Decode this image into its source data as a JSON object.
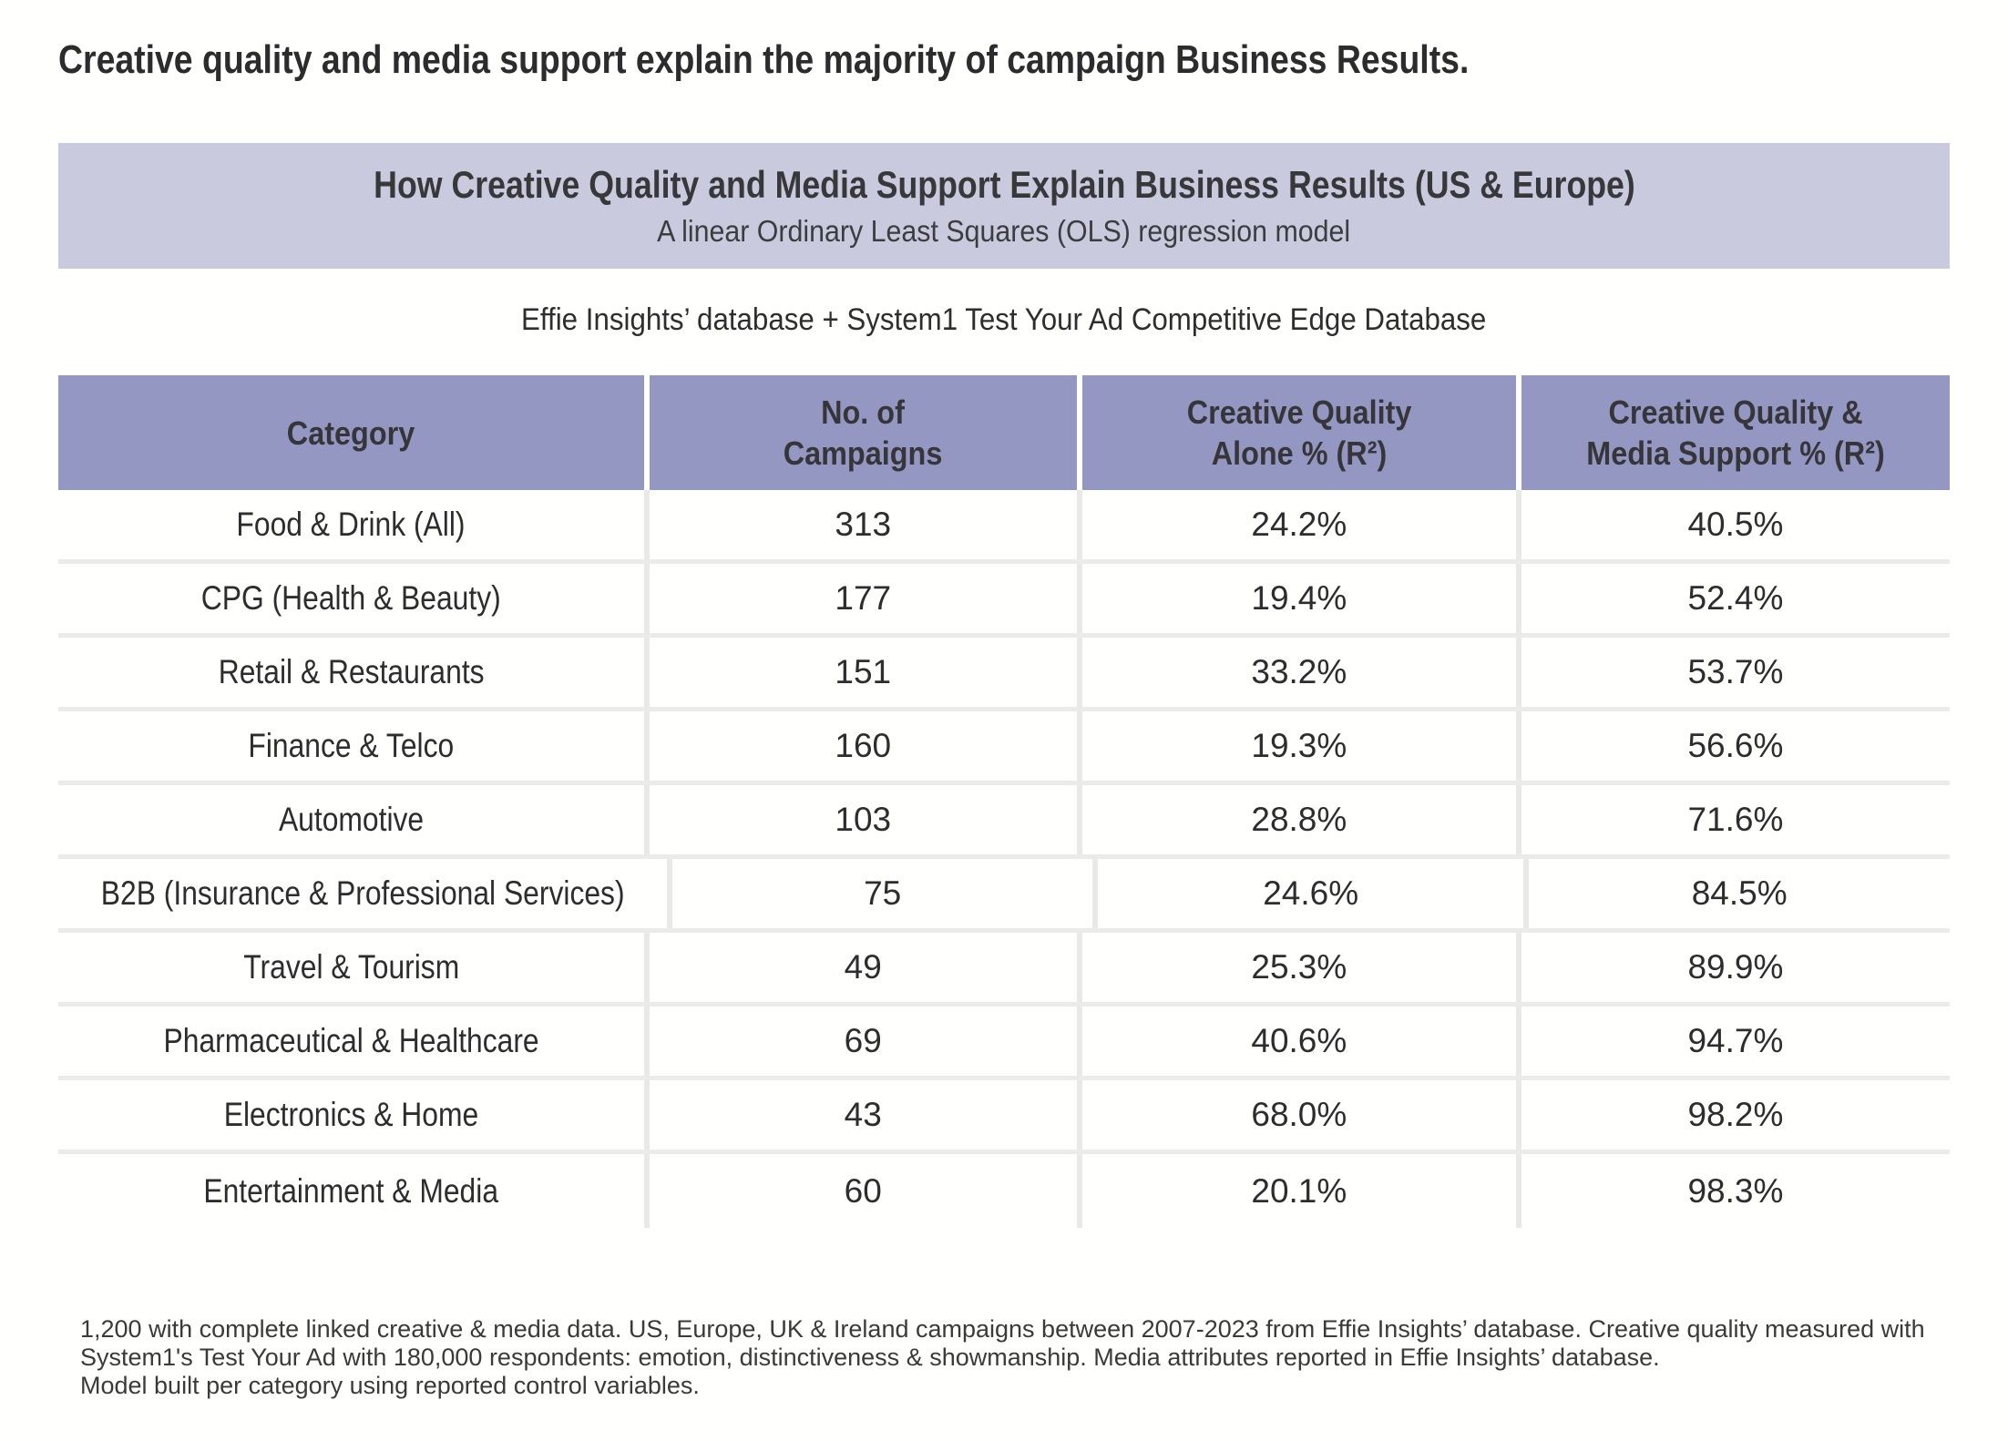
{
  "headline": "Creative quality and media support explain the majority of campaign Business Results.",
  "banner": {
    "title": "How Creative Quality and Media Support Explain Business Results (US & Europe)",
    "subtitle": "A linear Ordinary Least Squares (OLS) regression model"
  },
  "source_line": "Effie Insights’ database + System1 Test Your Ad Competitive Edge Database",
  "table": {
    "columns": [
      {
        "line1": "Category",
        "line2": ""
      },
      {
        "line1": "No. of",
        "line2": "Campaigns"
      },
      {
        "line1": "Creative Quality",
        "line2": "Alone % (R²)"
      },
      {
        "line1": "Creative Quality &",
        "line2": "Media Support % (R²)"
      }
    ],
    "rows": [
      {
        "category": "Food & Drink (All)",
        "campaigns": "313",
        "cq_alone": "24.2%",
        "cq_media": "40.5%"
      },
      {
        "category": "CPG (Health & Beauty)",
        "campaigns": "177",
        "cq_alone": "19.4%",
        "cq_media": "52.4%"
      },
      {
        "category": "Retail & Restaurants",
        "campaigns": "151",
        "cq_alone": "33.2%",
        "cq_media": "53.7%"
      },
      {
        "category": "Finance & Telco",
        "campaigns": "160",
        "cq_alone": "19.3%",
        "cq_media": "56.6%"
      },
      {
        "category": "Automotive",
        "campaigns": "103",
        "cq_alone": "28.8%",
        "cq_media": "71.6%"
      },
      {
        "category": "B2B (Insurance & Professional Services)",
        "campaigns": "75",
        "cq_alone": "24.6%",
        "cq_media": "84.5%"
      },
      {
        "category": "Travel & Tourism",
        "campaigns": "49",
        "cq_alone": "25.3%",
        "cq_media": "89.9%"
      },
      {
        "category": "Pharmaceutical & Healthcare",
        "campaigns": "69",
        "cq_alone": "40.6%",
        "cq_media": "94.7%"
      },
      {
        "category": "Electronics & Home",
        "campaigns": "43",
        "cq_alone": "68.0%",
        "cq_media": "98.2%"
      },
      {
        "category": "Entertainment & Media",
        "campaigns": "60",
        "cq_alone": "20.1%",
        "cq_media": "98.3%"
      }
    ]
  },
  "footnote": {
    "line1": "1,200 with complete linked creative & media data. US, Europe, UK & Ireland campaigns between 2007-2023 from Effie Insights’ database. Creative quality measured with",
    "line2": "System1's Test Your Ad with 180,000 respondents: emotion, distinctiveness & showmanship. Media attributes reported in Effie Insights’ database.",
    "line3": "Model built per category using reported control variables."
  },
  "colors": {
    "page_background": "#fffffd",
    "banner_background": "#c9cade",
    "table_header_background": "#9497c2",
    "row_separator": "#ebebea",
    "column_separator": "#e9e9e7",
    "text_dark": "#2c2c2e"
  },
  "chart_data": {
    "type": "table",
    "title": "How Creative Quality and Media Support Explain Business Results (US & Europe)",
    "subtitle": "A linear Ordinary Least Squares (OLS) regression model",
    "source": "Effie Insights’ database + System1 Test Your Ad Competitive Edge Database",
    "columns": [
      "Category",
      "No. of Campaigns",
      "Creative Quality Alone % (R²)",
      "Creative Quality & Media Support % (R²)"
    ],
    "rows": [
      [
        "Food & Drink (All)",
        313,
        24.2,
        40.5
      ],
      [
        "CPG (Health & Beauty)",
        177,
        19.4,
        52.4
      ],
      [
        "Retail & Restaurants",
        151,
        33.2,
        53.7
      ],
      [
        "Finance & Telco",
        160,
        19.3,
        56.6
      ],
      [
        "Automotive",
        103,
        28.8,
        71.6
      ],
      [
        "B2B (Insurance & Professional Services)",
        75,
        24.6,
        84.5
      ],
      [
        "Travel & Tourism",
        49,
        25.3,
        89.9
      ],
      [
        "Pharmaceutical & Healthcare",
        69,
        40.6,
        94.7
      ],
      [
        "Electronics & Home",
        43,
        68.0,
        98.2
      ],
      [
        "Entertainment & Media",
        60,
        20.1,
        98.3
      ]
    ],
    "value_units": "R² percent explained"
  }
}
